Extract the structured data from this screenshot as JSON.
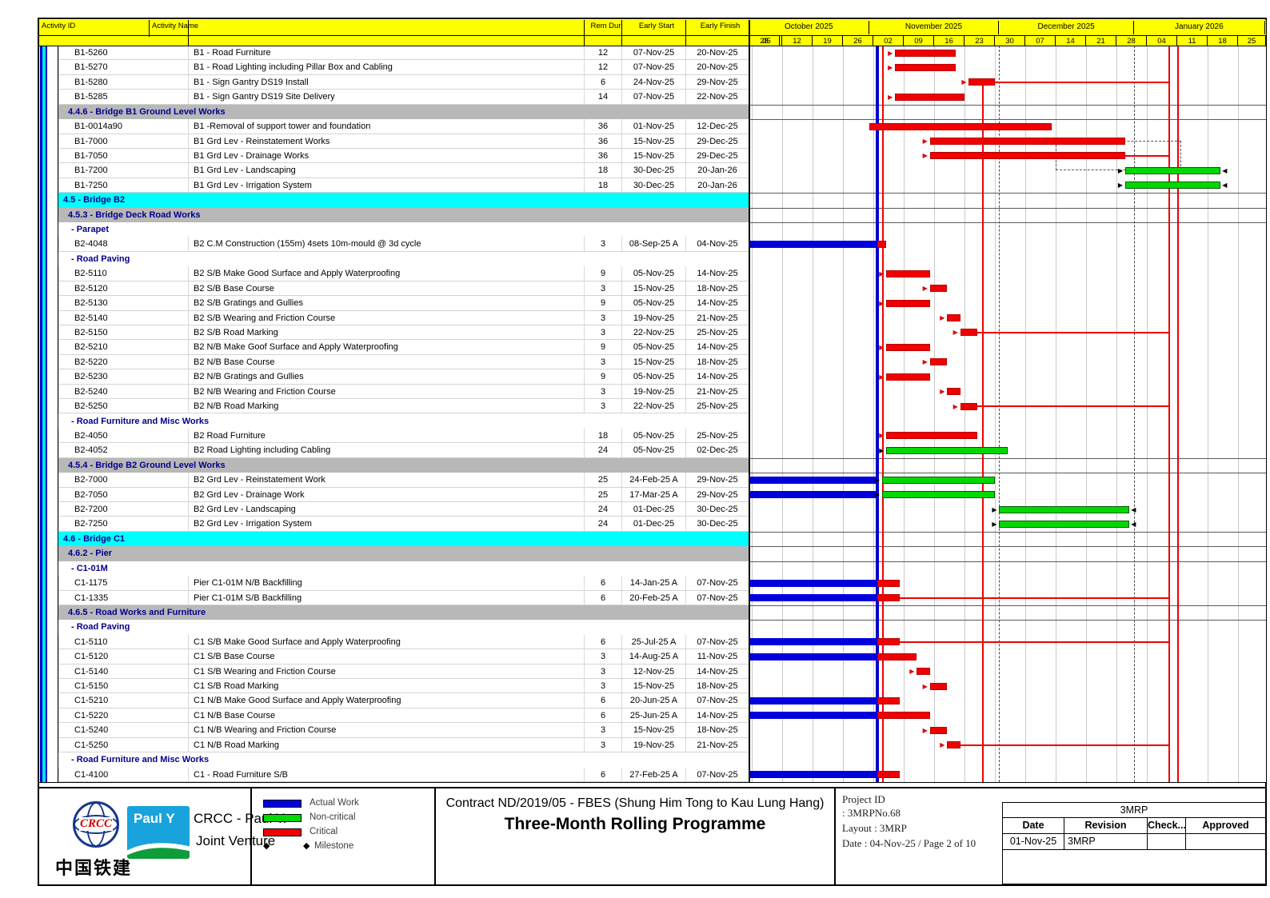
{
  "chart_data": {
    "type": "gantt",
    "title": "Three-Month Rolling Programme",
    "columns": [
      "Activity ID",
      "Activity Name",
      "Rem Dur",
      "Early Start",
      "Early Finish"
    ],
    "timeline": {
      "months": [
        {
          "label": "October 2025",
          "s": "2025-10-02",
          "e": "2025-11-01"
        },
        {
          "label": "November 2025",
          "s": "2025-11-01",
          "e": "2025-12-01"
        },
        {
          "label": "December 2025",
          "s": "2025-12-01",
          "e": "2026-01-01"
        },
        {
          "label": "January 2026",
          "s": "2026-01-01",
          "e": "2026-02-01"
        }
      ],
      "weeks": [
        {
          "d": "2025-09-28",
          "label": "28"
        },
        {
          "d": "2025-10-05",
          "label": "05"
        },
        {
          "d": "2025-10-12",
          "label": "12"
        },
        {
          "d": "2025-10-19",
          "label": "19"
        },
        {
          "d": "2025-10-26",
          "label": "26"
        },
        {
          "d": "2025-11-02",
          "label": "02"
        },
        {
          "d": "2025-11-09",
          "label": "09"
        },
        {
          "d": "2025-11-16",
          "label": "16"
        },
        {
          "d": "2025-11-23",
          "label": "23"
        },
        {
          "d": "2025-11-30",
          "label": "30"
        },
        {
          "d": "2025-12-07",
          "label": "07"
        },
        {
          "d": "2025-12-14",
          "label": "14"
        },
        {
          "d": "2025-12-21",
          "label": "21"
        },
        {
          "d": "2025-12-28",
          "label": "28"
        },
        {
          "d": "2026-01-04",
          "label": "04"
        },
        {
          "d": "2026-01-11",
          "label": "11"
        },
        {
          "d": "2026-01-18",
          "label": "18"
        },
        {
          "d": "2026-01-25",
          "label": "25"
        }
      ],
      "data_date": "2025-11-03",
      "dashed_month_lines": [
        "2025-12-01",
        "2026-01-01"
      ],
      "deadline_lines": [
        "2026-01-09",
        "2026-01-11"
      ]
    },
    "rows": [
      {
        "k": "task",
        "id": "B1-5260",
        "name": "B1 - Road Furniture",
        "rd": "12",
        "es": "07-Nov-25",
        "ef": "20-Nov-25",
        "bars": [
          {
            "t": "c",
            "s": "2025-11-07",
            "e": "2025-11-21",
            "arr": "r"
          }
        ]
      },
      {
        "k": "task",
        "id": "B1-5270",
        "name": "B1 - Road Lighting including Pillar Box and Cabling",
        "rd": "12",
        "es": "07-Nov-25",
        "ef": "20-Nov-25",
        "bars": [
          {
            "t": "c",
            "s": "2025-11-07",
            "e": "2025-11-21",
            "arr": "r"
          }
        ]
      },
      {
        "k": "task",
        "id": "B1-5280",
        "name": "B1 - Sign Gantry DS19 Install",
        "rd": "6",
        "es": "24-Nov-25",
        "ef": "29-Nov-25",
        "bars": [
          {
            "t": "c",
            "s": "2025-11-24",
            "e": "2025-11-30",
            "arr": "r"
          }
        ]
      },
      {
        "k": "task",
        "id": "B1-5285",
        "name": "B1 - Sign Gantry DS19 Site Delivery",
        "rd": "14",
        "es": "07-Nov-25",
        "ef": "22-Nov-25",
        "bars": [
          {
            "t": "c",
            "s": "2025-11-07",
            "e": "2025-11-23",
            "arr": "r"
          }
        ]
      },
      {
        "k": "wbs2",
        "label": "4.4.6 - Bridge B1 Ground Level Works"
      },
      {
        "k": "task",
        "id": "B1-0014a90",
        "name": "B1 -Removal of support tower and foundation",
        "rd": "36",
        "es": "01-Nov-25",
        "ef": "12-Dec-25",
        "bars": [
          {
            "t": "c",
            "s": "2025-11-01",
            "e": "2025-12-13"
          }
        ]
      },
      {
        "k": "task",
        "id": "B1-7000",
        "name": "B1 Grd Lev - Reinstatement Works",
        "rd": "36",
        "es": "15-Nov-25",
        "ef": "29-Dec-25",
        "bars": [
          {
            "t": "c",
            "s": "2025-11-15",
            "e": "2025-12-30",
            "arr": "r"
          }
        ]
      },
      {
        "k": "task",
        "id": "B1-7050",
        "name": "B1 Grd Lev - Drainage Works",
        "rd": "36",
        "es": "15-Nov-25",
        "ef": "29-Dec-25",
        "bars": [
          {
            "t": "c",
            "s": "2025-11-15",
            "e": "2025-12-30",
            "arr": "r"
          }
        ]
      },
      {
        "k": "task",
        "id": "B1-7200",
        "name": "B1 Grd Lev - Landscaping",
        "rd": "18",
        "es": "30-Dec-25",
        "ef": "20-Jan-26",
        "bars": [
          {
            "t": "g",
            "s": "2025-12-30",
            "e": "2026-01-21",
            "arr": "b"
          }
        ]
      },
      {
        "k": "task",
        "id": "B1-7250",
        "name": "B1 Grd Lev - Irrigation System",
        "rd": "18",
        "es": "30-Dec-25",
        "ef": "20-Jan-26",
        "bars": [
          {
            "t": "g",
            "s": "2025-12-30",
            "e": "2026-01-21",
            "arr": "b"
          }
        ]
      },
      {
        "k": "wbs1",
        "label": "4.5 - Bridge B2"
      },
      {
        "k": "wbs2",
        "label": "4.5.3 - Bridge Deck Road Works"
      },
      {
        "k": "sub",
        "label": "- Parapet"
      },
      {
        "k": "task",
        "id": "B2-4048",
        "name": "B2 C.M Construction (155m) 4sets 10m-mould @ 3d cycle",
        "rd": "3",
        "es": "08-Sep-25 A",
        "ef": "04-Nov-25",
        "bars": [
          {
            "t": "a",
            "s": "2025-10-02",
            "e": "2025-11-03"
          },
          {
            "t": "c",
            "s": "2025-11-03",
            "e": "2025-11-05"
          }
        ]
      },
      {
        "k": "sub",
        "label": "- Road Paving"
      },
      {
        "k": "task",
        "id": "B2-5110",
        "name": "B2 S/B Make Good Surface and Apply Waterproofing",
        "rd": "9",
        "es": "05-Nov-25",
        "ef": "14-Nov-25",
        "bars": [
          {
            "t": "c",
            "s": "2025-11-05",
            "e": "2025-11-15",
            "arr": "r"
          }
        ]
      },
      {
        "k": "task",
        "id": "B2-5120",
        "name": "B2 S/B Base Course",
        "rd": "3",
        "es": "15-Nov-25",
        "ef": "18-Nov-25",
        "bars": [
          {
            "t": "c",
            "s": "2025-11-15",
            "e": "2025-11-19",
            "arr": "r"
          }
        ]
      },
      {
        "k": "task",
        "id": "B2-5130",
        "name": "B2 S/B Gratings and Gullies",
        "rd": "9",
        "es": "05-Nov-25",
        "ef": "14-Nov-25",
        "bars": [
          {
            "t": "c",
            "s": "2025-11-05",
            "e": "2025-11-15",
            "arr": "r"
          }
        ]
      },
      {
        "k": "task",
        "id": "B2-5140",
        "name": "B2 S/B Wearing and Friction Course",
        "rd": "3",
        "es": "19-Nov-25",
        "ef": "21-Nov-25",
        "bars": [
          {
            "t": "c",
            "s": "2025-11-19",
            "e": "2025-11-22",
            "arr": "r"
          }
        ]
      },
      {
        "k": "task",
        "id": "B2-5150",
        "name": "B2 S/B Road Marking",
        "rd": "3",
        "es": "22-Nov-25",
        "ef": "25-Nov-25",
        "bars": [
          {
            "t": "c",
            "s": "2025-11-22",
            "e": "2025-11-26",
            "arr": "r"
          }
        ]
      },
      {
        "k": "task",
        "id": "B2-5210",
        "name": "B2 N/B Make Goof Surface and Apply Waterproofing",
        "rd": "9",
        "es": "05-Nov-25",
        "ef": "14-Nov-25",
        "bars": [
          {
            "t": "c",
            "s": "2025-11-05",
            "e": "2025-11-15",
            "arr": "r"
          }
        ]
      },
      {
        "k": "task",
        "id": "B2-5220",
        "name": "B2 N/B Base Course",
        "rd": "3",
        "es": "15-Nov-25",
        "ef": "18-Nov-25",
        "bars": [
          {
            "t": "c",
            "s": "2025-11-15",
            "e": "2025-11-19",
            "arr": "r"
          }
        ]
      },
      {
        "k": "task",
        "id": "B2-5230",
        "name": "B2 N/B Gratings and Gullies",
        "rd": "9",
        "es": "05-Nov-25",
        "ef": "14-Nov-25",
        "bars": [
          {
            "t": "c",
            "s": "2025-11-05",
            "e": "2025-11-15",
            "arr": "r"
          }
        ]
      },
      {
        "k": "task",
        "id": "B2-5240",
        "name": "B2 N/B Wearing and Friction Course",
        "rd": "3",
        "es": "19-Nov-25",
        "ef": "21-Nov-25",
        "bars": [
          {
            "t": "c",
            "s": "2025-11-19",
            "e": "2025-11-22",
            "arr": "r"
          }
        ]
      },
      {
        "k": "task",
        "id": "B2-5250",
        "name": "B2 N/B Road Marking",
        "rd": "3",
        "es": "22-Nov-25",
        "ef": "25-Nov-25",
        "bars": [
          {
            "t": "c",
            "s": "2025-11-22",
            "e": "2025-11-26",
            "arr": "r"
          }
        ]
      },
      {
        "k": "sub",
        "label": "- Road Furniture and Misc Works"
      },
      {
        "k": "task",
        "id": "B2-4050",
        "name": "B2 Road Furniture",
        "rd": "18",
        "es": "05-Nov-25",
        "ef": "25-Nov-25",
        "bars": [
          {
            "t": "c",
            "s": "2025-11-05",
            "e": "2025-11-26",
            "arr": "r"
          }
        ]
      },
      {
        "k": "task",
        "id": "B2-4052",
        "name": "B2 Road Lighting including Cabling",
        "rd": "24",
        "es": "05-Nov-25",
        "ef": "02-Dec-25",
        "bars": [
          {
            "t": "g",
            "s": "2025-11-05",
            "e": "2025-12-03",
            "arr": "bl"
          }
        ]
      },
      {
        "k": "wbs2",
        "label": "4.5.4 - Bridge B2 Ground Level Works"
      },
      {
        "k": "task",
        "id": "B2-7000",
        "name": "B2 Grd Lev - Reinstatement Work",
        "rd": "25",
        "es": "24-Feb-25 A",
        "ef": "29-Nov-25",
        "bars": [
          {
            "t": "a",
            "s": "2025-10-02",
            "e": "2025-11-03"
          },
          {
            "t": "g",
            "s": "2025-11-04",
            "e": "2025-11-30",
            "arr": "bl"
          }
        ]
      },
      {
        "k": "task",
        "id": "B2-7050",
        "name": "B2 Grd Lev - Drainage Work",
        "rd": "25",
        "es": "17-Mar-25 A",
        "ef": "29-Nov-25",
        "bars": [
          {
            "t": "a",
            "s": "2025-10-02",
            "e": "2025-11-03"
          },
          {
            "t": "g",
            "s": "2025-11-04",
            "e": "2025-11-30",
            "arr": "bl"
          }
        ]
      },
      {
        "k": "task",
        "id": "B2-7200",
        "name": "B2 Grd Lev - Landscaping",
        "rd": "24",
        "es": "01-Dec-25",
        "ef": "30-Dec-25",
        "bars": [
          {
            "t": "g",
            "s": "2025-12-01",
            "e": "2025-12-31",
            "arr": "b"
          }
        ]
      },
      {
        "k": "task",
        "id": "B2-7250",
        "name": "B2 Grd Lev - Irrigation System",
        "rd": "24",
        "es": "01-Dec-25",
        "ef": "30-Dec-25",
        "bars": [
          {
            "t": "g",
            "s": "2025-12-01",
            "e": "2025-12-31",
            "arr": "b"
          }
        ]
      },
      {
        "k": "wbs1",
        "label": "4.6 - Bridge C1"
      },
      {
        "k": "wbs2",
        "label": "4.6.2 - Pier"
      },
      {
        "k": "sub",
        "label": "- C1-01M"
      },
      {
        "k": "task",
        "id": "C1-1175",
        "name": "Pier C1-01M N/B Backfilling",
        "rd": "6",
        "es": "14-Jan-25 A",
        "ef": "07-Nov-25",
        "bars": [
          {
            "t": "a",
            "s": "2025-10-02",
            "e": "2025-11-03"
          },
          {
            "t": "c",
            "s": "2025-11-03",
            "e": "2025-11-08"
          }
        ]
      },
      {
        "k": "task",
        "id": "C1-1335",
        "name": "Pier C1-01M S/B Backfilling",
        "rd": "6",
        "es": "20-Feb-25 A",
        "ef": "07-Nov-25",
        "bars": [
          {
            "t": "a",
            "s": "2025-10-02",
            "e": "2025-11-03"
          },
          {
            "t": "c",
            "s": "2025-11-03",
            "e": "2025-11-08"
          }
        ]
      },
      {
        "k": "wbs2",
        "label": "4.6.5 - Road Works and Furniture"
      },
      {
        "k": "sub",
        "label": "- Road Paving"
      },
      {
        "k": "task",
        "id": "C1-5110",
        "name": "C1 S/B Make Good Surface and Apply Waterproofing",
        "rd": "6",
        "es": "25-Jul-25 A",
        "ef": "07-Nov-25",
        "bars": [
          {
            "t": "a",
            "s": "2025-10-02",
            "e": "2025-11-03"
          },
          {
            "t": "c",
            "s": "2025-11-03",
            "e": "2025-11-08"
          }
        ]
      },
      {
        "k": "task",
        "id": "C1-5120",
        "name": "C1 S/B Base Course",
        "rd": "3",
        "es": "14-Aug-25 A",
        "ef": "11-Nov-25",
        "bars": [
          {
            "t": "a",
            "s": "2025-10-02",
            "e": "2025-11-03"
          },
          {
            "t": "c",
            "s": "2025-11-03",
            "e": "2025-11-12"
          }
        ]
      },
      {
        "k": "task",
        "id": "C1-5140",
        "name": "C1 S/B Wearing and Friction Course",
        "rd": "3",
        "es": "12-Nov-25",
        "ef": "14-Nov-25",
        "bars": [
          {
            "t": "c",
            "s": "2025-11-12",
            "e": "2025-11-15",
            "arr": "r"
          }
        ]
      },
      {
        "k": "task",
        "id": "C1-5150",
        "name": "C1 S/B Road Marking",
        "rd": "3",
        "es": "15-Nov-25",
        "ef": "18-Nov-25",
        "bars": [
          {
            "t": "c",
            "s": "2025-11-15",
            "e": "2025-11-19",
            "arr": "r"
          }
        ]
      },
      {
        "k": "task",
        "id": "C1-5210",
        "name": "C1 N/B Make Good Surface and Apply Waterproofing",
        "rd": "6",
        "es": "20-Jun-25 A",
        "ef": "07-Nov-25",
        "bars": [
          {
            "t": "a",
            "s": "2025-10-02",
            "e": "2025-11-03"
          },
          {
            "t": "c",
            "s": "2025-11-03",
            "e": "2025-11-08"
          }
        ]
      },
      {
        "k": "task",
        "id": "C1-5220",
        "name": "C1 N/B Base Course",
        "rd": "6",
        "es": "25-Jun-25 A",
        "ef": "14-Nov-25",
        "bars": [
          {
            "t": "a",
            "s": "2025-10-02",
            "e": "2025-11-03"
          },
          {
            "t": "c",
            "s": "2025-11-03",
            "e": "2025-11-15"
          }
        ]
      },
      {
        "k": "task",
        "id": "C1-5240",
        "name": "C1 N/B Wearing and Friction Course",
        "rd": "3",
        "es": "15-Nov-25",
        "ef": "18-Nov-25",
        "bars": [
          {
            "t": "c",
            "s": "2025-11-15",
            "e": "2025-11-19",
            "arr": "r"
          }
        ]
      },
      {
        "k": "task",
        "id": "C1-5250",
        "name": "C1 N/B Road Marking",
        "rd": "3",
        "es": "19-Nov-25",
        "ef": "21-Nov-25",
        "bars": [
          {
            "t": "c",
            "s": "2025-11-19",
            "e": "2025-11-22",
            "arr": "r"
          }
        ]
      },
      {
        "k": "sub",
        "label": "- Road Furniture and Misc Works"
      },
      {
        "k": "task",
        "id": "C1-4100",
        "name": "C1 - Road Furniture S/B",
        "rd": "6",
        "es": "27-Feb-25 A",
        "ef": "07-Nov-25",
        "bars": [
          {
            "t": "a",
            "s": "2025-10-02",
            "e": "2025-11-03"
          },
          {
            "t": "c",
            "s": "2025-11-03",
            "e": "2025-11-08"
          }
        ]
      }
    ],
    "relationships": {
      "horizontal": [
        {
          "row": 2,
          "from": "2025-11-30"
        },
        {
          "row": 7,
          "from": "2025-12-30"
        },
        {
          "row": 19,
          "from": "2025-11-26"
        },
        {
          "row": 24,
          "from": "2025-11-26"
        },
        {
          "row": 37,
          "from": "2025-11-08"
        },
        {
          "row": 40,
          "from": "2025-11-08"
        },
        {
          "row": 47,
          "from": "2025-11-22"
        }
      ],
      "vertical": [
        {
          "d": "2025-11-04",
          "r1": 0,
          "r2": 50
        },
        {
          "d": "2025-11-27",
          "r1": 2.5,
          "r2": 50
        }
      ],
      "dashed_box": {
        "s": "2025-12-14",
        "e": "2026-01-12",
        "r1": 6.45,
        "r2": 8.45
      }
    }
  },
  "legend": [
    {
      "label": "Actual Work",
      "type": "actual",
      "color": "#0000dd"
    },
    {
      "label": "Non-critical",
      "type": "noncritical",
      "color": "#00d900"
    },
    {
      "label": "Critical",
      "type": "critical",
      "color": "#f00000"
    },
    {
      "label": "Milestone",
      "type": "milestone",
      "color": "#000000"
    }
  ],
  "footer": {
    "company": {
      "crcc_text": "CRCC",
      "crcc_cn": "中国铁建",
      "pauly_text": "Paul Y",
      "jv_line1": "CRCC - Paul Y.",
      "jv_line2": "Joint Venture"
    },
    "title_line1": "Contract ND/2019/05 - FBES (Shung Him Tong to Kau Lung Hang)",
    "title_line2": "Three-Month Rolling Programme",
    "info": {
      "project_id_label": "Project ID",
      "project_id_value": ": 3MRPNo.68",
      "layout": "Layout : 3MRP",
      "date_page": "Date : 04-Nov-25  / Page 2 of  10"
    },
    "revision": {
      "group": "3MRP",
      "col_date": "Date",
      "col_revision": "Revision",
      "col_check": "Check...",
      "col_approved": "Approved",
      "row_date": "01-Nov-25",
      "row_revision": "3MRP",
      "row_check": "",
      "row_approved": ""
    }
  }
}
